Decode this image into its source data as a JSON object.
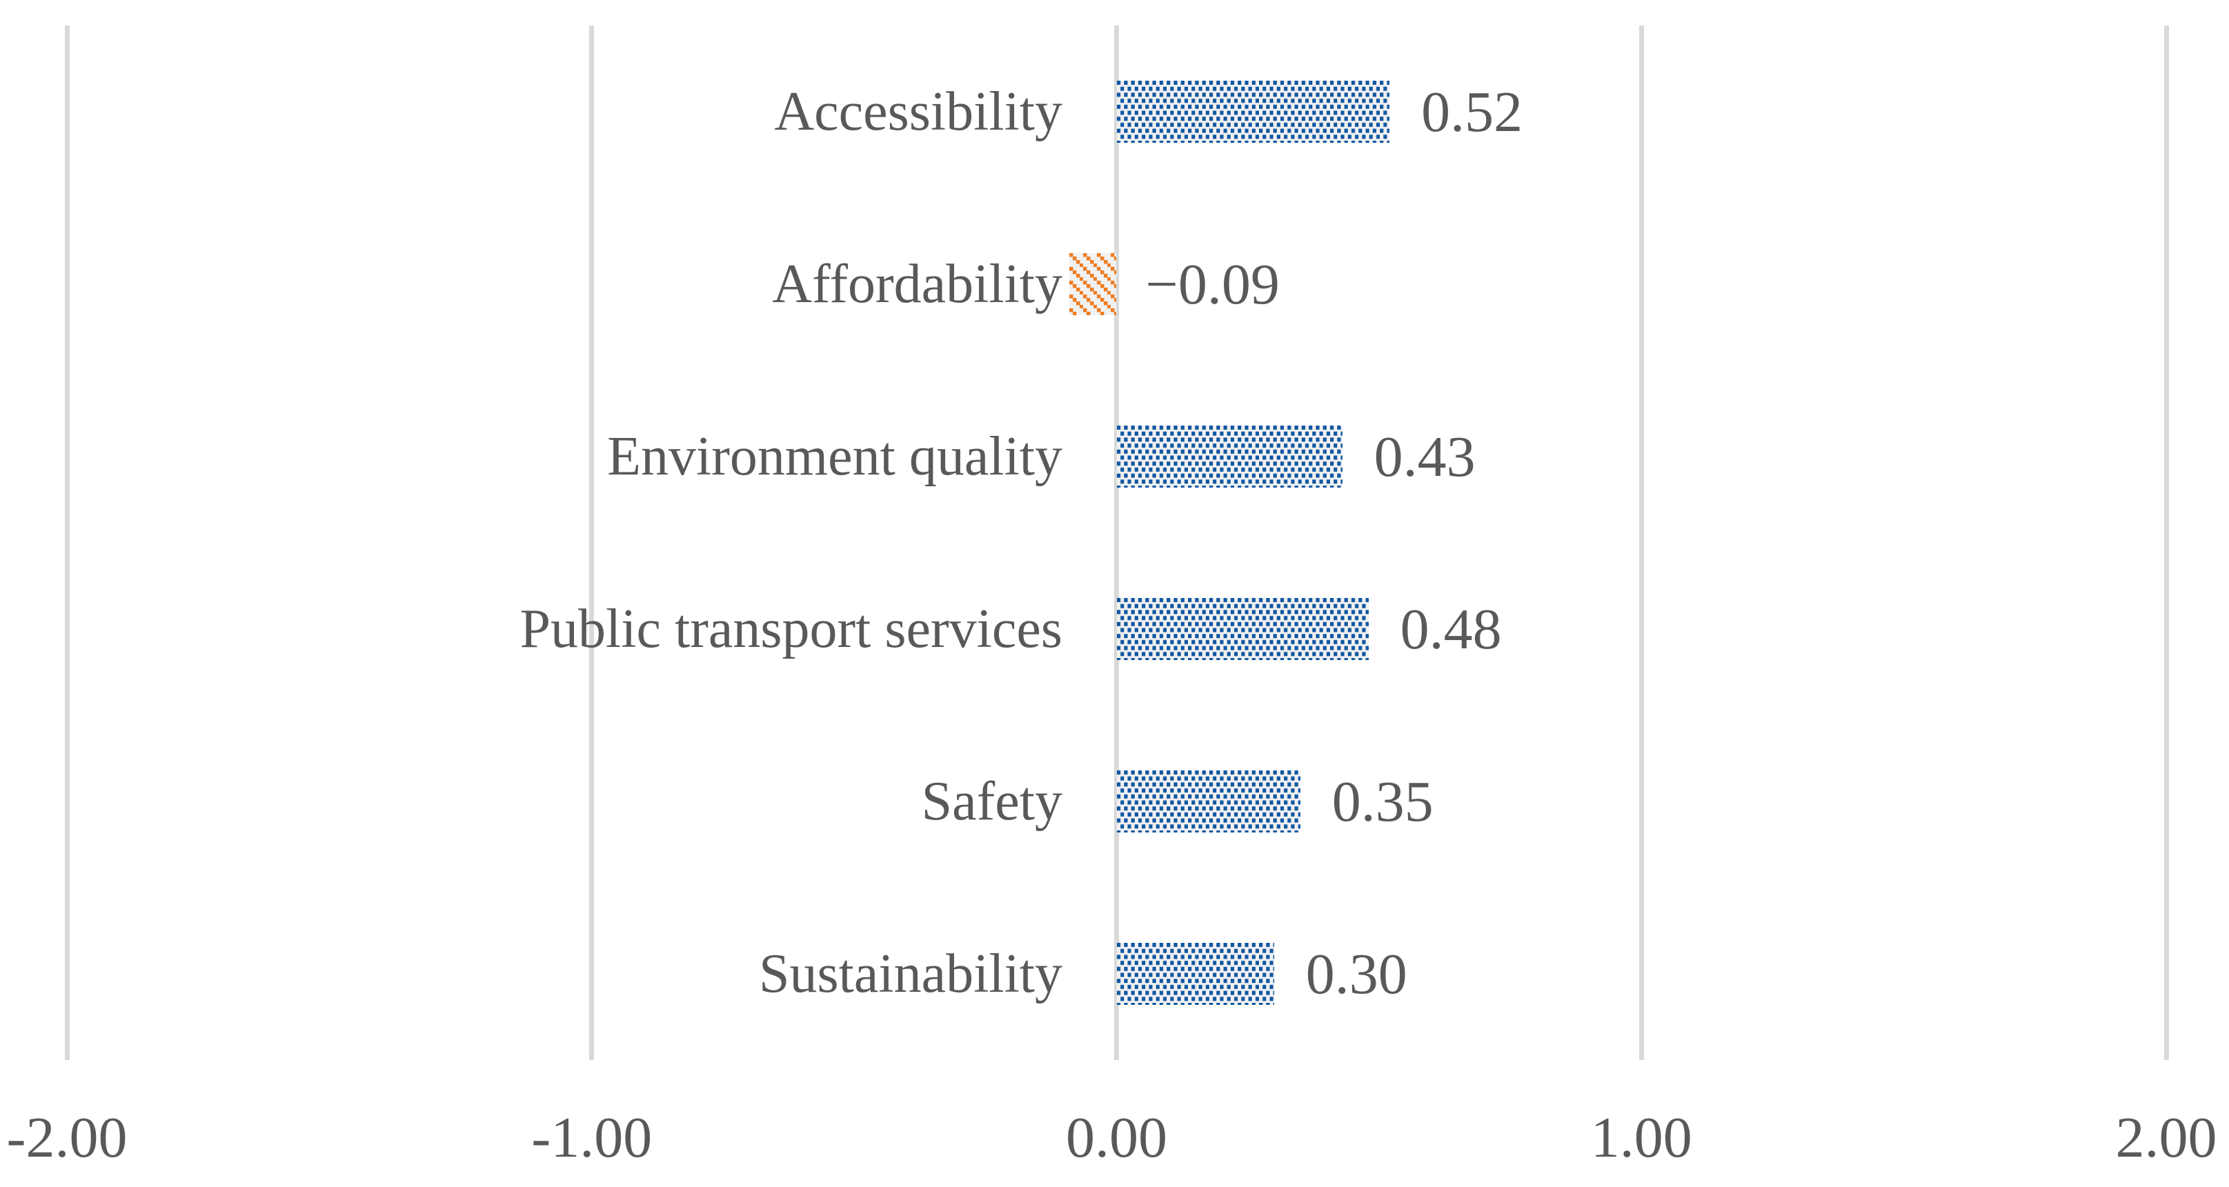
{
  "chart_data": {
    "type": "bar",
    "orientation": "horizontal",
    "title": "",
    "xlabel": "",
    "ylabel": "",
    "categories": [
      "Accessibility",
      "Affordability",
      "Environment quality",
      "Public transport services",
      "Safety",
      "Sustainability"
    ],
    "values": [
      0.52,
      -0.09,
      0.43,
      0.48,
      0.35,
      0.3
    ],
    "value_labels": [
      "0.52",
      "−0.09",
      "0.43",
      "0.48",
      "0.35",
      "0.30"
    ],
    "xlim": [
      -2,
      2
    ],
    "ticks": [
      -2,
      -1,
      0,
      1,
      2
    ],
    "tick_labels": [
      "-2.00",
      "-1.00",
      "0.00",
      "1.00",
      "2.00"
    ],
    "grid": "vertical-only",
    "legend": "none",
    "colors": {
      "positive_pattern": "#0F57A2",
      "negative_pattern": "#EE7D22",
      "bar_background": "#F1F1F1",
      "gridline": "#D9D9D9",
      "text": "#595959"
    }
  }
}
